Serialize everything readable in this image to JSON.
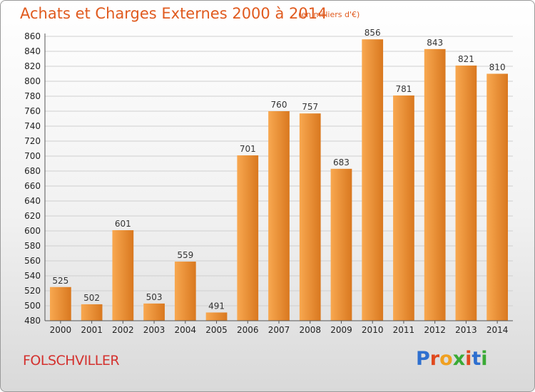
{
  "header": {
    "title": "Achats et Charges Externes 2000 à 2014",
    "subtitle": "(en milliers d'€)"
  },
  "footer": {
    "town": "FOLSCHVILLER",
    "logo_letters": [
      "P",
      "r",
      "o",
      "x",
      "i",
      "t",
      "i"
    ],
    "logo_colors": [
      "#2e6fcf",
      "#e0491e",
      "#f0a020",
      "#3aaa35",
      "#e0491e",
      "#2e6fcf",
      "#3aaa35"
    ]
  },
  "colors": {
    "bar_light": "#f8a850",
    "bar_dark": "#d9781f",
    "grid": "#cfcfcf",
    "axis": "#555555"
  },
  "chart_data": {
    "type": "bar",
    "title": "Achats et Charges Externes 2000 à 2014",
    "subtitle": "(en milliers d'€)",
    "categories": [
      "2000",
      "2001",
      "2002",
      "2003",
      "2004",
      "2005",
      "2006",
      "2007",
      "2008",
      "2009",
      "2010",
      "2011",
      "2012",
      "2013",
      "2014"
    ],
    "values": [
      525,
      502,
      601,
      503,
      559,
      491,
      701,
      760,
      757,
      683,
      856,
      781,
      843,
      821,
      810
    ],
    "ylim": [
      480,
      860
    ],
    "yticks": [
      480,
      500,
      520,
      540,
      560,
      580,
      600,
      620,
      640,
      660,
      680,
      700,
      720,
      740,
      760,
      780,
      800,
      820,
      840,
      860
    ],
    "grid": true,
    "legend": "none"
  }
}
